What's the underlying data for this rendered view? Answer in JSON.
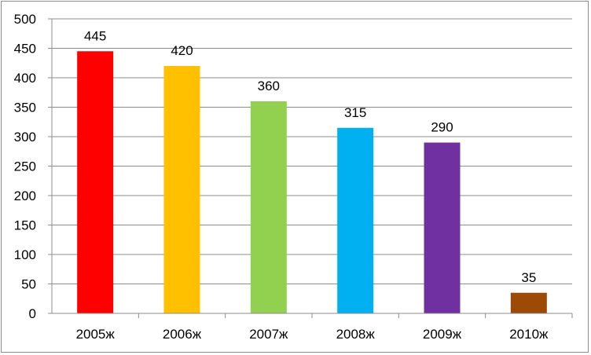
{
  "chart_data": {
    "type": "bar",
    "categories": [
      "2005ж",
      "2006ж",
      "2007ж",
      "2008ж",
      "2009ж",
      "2010ж"
    ],
    "values": [
      445,
      420,
      360,
      315,
      290,
      35
    ],
    "data_labels": [
      "445",
      "420",
      "360",
      "315",
      "290",
      "35"
    ],
    "colors": [
      "#ff0000",
      "#ffc000",
      "#92d050",
      "#00b0f0",
      "#7030a0",
      "#9c4a06"
    ],
    "yticks": [
      "0",
      "50",
      "100",
      "150",
      "200",
      "250",
      "300",
      "350",
      "400",
      "450",
      "500"
    ],
    "ylim": [
      0,
      500
    ],
    "grid": true,
    "legend": "none"
  }
}
